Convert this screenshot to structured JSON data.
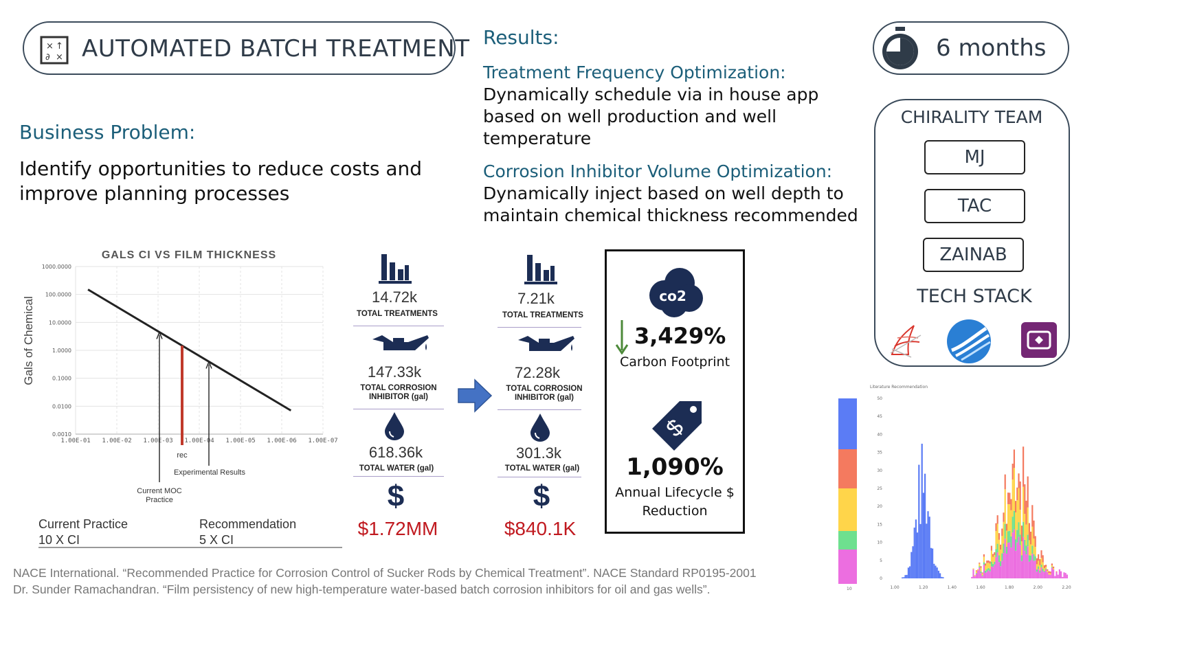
{
  "title": {
    "label": "AUTOMATED BATCH TREATMENT",
    "icon": "math-symbols-icon"
  },
  "duration": {
    "label": "6 months",
    "icon": "stopwatch-icon"
  },
  "business_problem": {
    "heading": "Business Problem:",
    "body_line1": "Identify opportunities to reduce costs and",
    "body_line2": "improve planning processes"
  },
  "results": {
    "heading": "Results:",
    "freq_heading": "Treatment Frequency Optimization:",
    "freq_line1": "Dynamically schedule via in house app",
    "freq_line2": "based on well production and well",
    "freq_line3": "temperature",
    "ci_heading": "Corrosion Inhibitor Volume Optimization:",
    "ci_line1": "Dynamically inject based on well depth to",
    "ci_line2": "maintain chemical thickness recommended"
  },
  "team": {
    "heading": "CHIRALITY TEAM",
    "members": [
      "MJ",
      "TAC",
      "ZAINAB"
    ],
    "tech_heading": "TECH STACK",
    "tech_icons": [
      "sql-server-icon",
      "azure-data-studio-icon",
      "power-apps-icon"
    ]
  },
  "chart_data": {
    "type": "line",
    "title": "GALS CI VS FILM THICKNESS",
    "ylabel": "Gals of Chemical",
    "y_ticks": [
      "1000.0000",
      "100.0000",
      "10.0000",
      "1.0000",
      "0.1000",
      "0.0100",
      "0.0010"
    ],
    "x_ticks": [
      "1.00E-01",
      "1.00E-02",
      "1.00E-03",
      "1.00E-04",
      "1.00E-05",
      "1.00E-06",
      "1.00E-07"
    ],
    "line_start": {
      "x": 0.05,
      "y": 150
    },
    "line_end": {
      "x": 6e-07,
      "y": 0.007
    },
    "annotations": {
      "rec": "rec",
      "experimental": "Experimental Results",
      "current_line1": "Current MOC",
      "current_line2": "Practice"
    },
    "footer": {
      "current_label": "Current Practice",
      "current_value": "10 X CI",
      "rec_label": "Recommendation",
      "rec_value": "5 X CI"
    },
    "colors": {
      "line": "#222222",
      "rec_bar": "#c0392b"
    }
  },
  "before": {
    "treatments": "14.72k",
    "treatments_label": "TOTAL TREATMENTS",
    "ci": "147.33k",
    "ci_label_1": "TOTAL CORROSION",
    "ci_label_2": "INHIBITOR (gal)",
    "water": "618.36k",
    "water_label": "TOTAL WATER (gal)",
    "cost": "$1.72MM"
  },
  "after": {
    "treatments": "7.21k",
    "treatments_label": "TOTAL TREATMENTS",
    "ci": "72.28k",
    "ci_label_1": "TOTAL CORROSION",
    "ci_label_2": "INHIBITOR (gal)",
    "water": "301.3k",
    "water_label": "TOTAL WATER (gal)",
    "cost": "$840.1K"
  },
  "impact": {
    "carbon_value": "3,429%",
    "carbon_label": "Carbon Footprint",
    "co2_text": "co2",
    "lifecycle_value": "1,090%",
    "lifecycle_label_1": "Annual Lifecycle $",
    "lifecycle_label_2": "Reduction"
  },
  "histogram": {
    "title": "Literature Recommendation",
    "y_ticks": [
      "50",
      "45",
      "40",
      "35",
      "30",
      "25",
      "20",
      "15",
      "10",
      "5",
      "0"
    ],
    "x_ticks": [
      "1.00",
      "1.20",
      "1.40",
      "1.60",
      "1.80",
      "2.00",
      "2.20"
    ],
    "legend_bottom_tick": "10",
    "colors": [
      "#5b7cf5",
      "#f47a5f",
      "#ffd54a",
      "#6ee08f",
      "#ec6ee0"
    ]
  },
  "references": {
    "line1": "NACE International. “Recommended Practice for Corrosion Control of Sucker Rods by Chemical Treatment”. NACE Standard RP0195-2001",
    "line2": "Dr. Sunder Ramachandran. “Film persistency of new high-temperature water-based batch corrosion inhibitors for oil and gas wells”."
  }
}
